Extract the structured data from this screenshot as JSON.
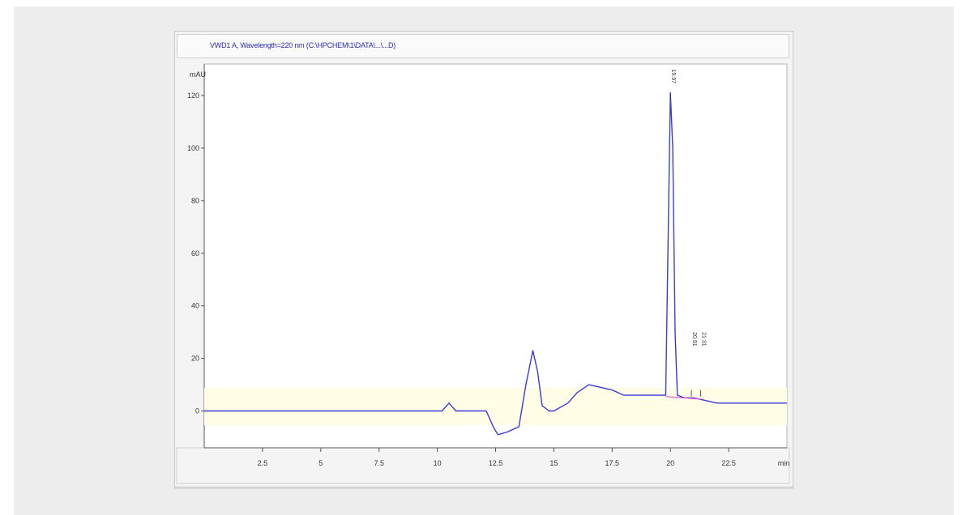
{
  "title": "VWD1 A, Wavelength=220 nm (C:\\HPCHEM\\1\\DATA\\...\\...D)",
  "chart_data": {
    "type": "line",
    "y_unit": "mAU",
    "x_ticks": [
      "2.5",
      "5",
      "7.5",
      "10",
      "12.5",
      "15",
      "17.5",
      "20",
      "22.5",
      "min"
    ],
    "y_ticks": [
      "0",
      "20",
      "40",
      "60",
      "80",
      "100",
      "120"
    ],
    "xlim": [
      0,
      25
    ],
    "ylim": [
      -14,
      132
    ],
    "grid": false,
    "series": [
      {
        "color": "#3b3bd6",
        "x": [
          0,
          9.8,
          10.2,
          10.5,
          10.8,
          12.1,
          12.4,
          12.6,
          13.0,
          13.5,
          13.8,
          14.1,
          14.3,
          14.5,
          14.8,
          15.0,
          15.6,
          16.0,
          16.5,
          17.0,
          17.5,
          18.0,
          19.0,
          19.5,
          19.8,
          20.0,
          20.1,
          20.2,
          20.3,
          20.6,
          21.0,
          21.5,
          22.0,
          22.5,
          25.0
        ],
        "y": [
          0,
          0,
          0,
          3,
          0,
          0,
          -6,
          -9,
          -8,
          -6,
          10,
          23,
          15,
          2,
          0,
          0,
          3,
          7,
          10,
          9,
          8,
          6,
          6,
          6,
          6,
          121,
          100,
          30,
          6,
          5,
          5,
          4,
          3,
          3,
          3
        ]
      }
    ],
    "annotations": [
      {
        "x": 20.0,
        "label": "19.97"
      },
      {
        "x": 20.9,
        "label": "20.91"
      },
      {
        "x": 21.3,
        "label": "21.31"
      }
    ]
  }
}
